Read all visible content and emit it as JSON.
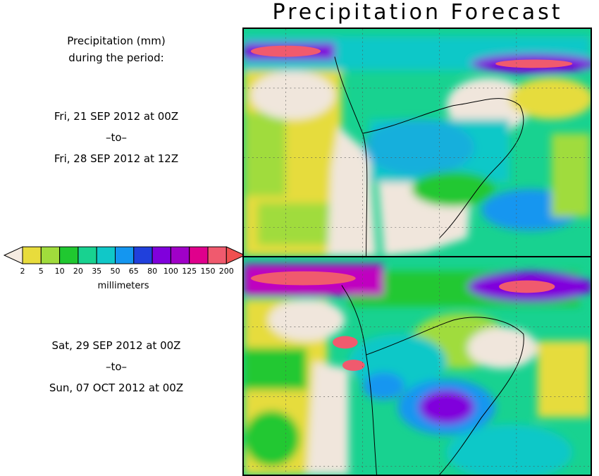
{
  "title": "Precipitation Forecast",
  "left_panel": {
    "header_line1": "Precipitation (mm)",
    "header_line2": "during the period:"
  },
  "period1": {
    "start": "Fri, 21 SEP 2012 at 00Z",
    "sep": "–to–",
    "end": "Fri, 28 SEP 2012 at 12Z"
  },
  "period2": {
    "start": "Sat, 29 SEP 2012 at 00Z",
    "sep": "–to–",
    "end": "Sun, 07 OCT 2012 at 00Z"
  },
  "legend": {
    "unit": "millimeters",
    "tick_labels": [
      "2",
      "5",
      "10",
      "20",
      "35",
      "50",
      "65",
      "80",
      "100",
      "125",
      "150",
      "200"
    ],
    "colors": [
      "#e8dc3c",
      "#a0dc3c",
      "#20c830",
      "#18d290",
      "#10c8c8",
      "#1496f0",
      "#2040dc",
      "#8000dc",
      "#a000c8",
      "#e0008c",
      "#f05a6e"
    ],
    "below_color": "#f5ebe1",
    "above_color": "#f05050"
  },
  "map_colors": {
    "dry": "#f0e6dc",
    "light": "#e6dc3c",
    "lime": "#a0dc3c",
    "green": "#20c830",
    "teal": "#18d290",
    "cyan": "#10c8c8",
    "blue": "#1496f0",
    "violet": "#8000dc",
    "magenta": "#c000c0",
    "red": "#f05a6e"
  }
}
